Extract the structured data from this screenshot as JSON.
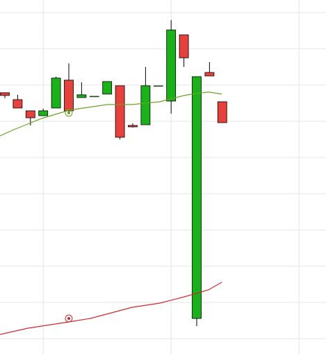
{
  "chart_data": {
    "type": "candlestick",
    "x": [
      0,
      1,
      2,
      3,
      4,
      5,
      6,
      7,
      8,
      9,
      10,
      11,
      12,
      13,
      14,
      15,
      16,
      17
    ],
    "open": [
      375,
      365,
      349,
      342,
      353,
      393,
      368,
      370,
      373,
      385,
      328,
      329,
      385,
      363,
      458,
      51,
      404,
      362
    ],
    "high": [
      375,
      372,
      349,
      352,
      398,
      417,
      390,
      370,
      391,
      385,
      331,
      412,
      385,
      479,
      458,
      398,
      419,
      362
    ],
    "low": [
      367,
      353,
      328,
      342,
      353,
      345,
      368,
      370,
      373,
      308,
      325,
      329,
      385,
      345,
      412,
      40,
      399,
      332
    ],
    "close": [
      371,
      353,
      339,
      349,
      396,
      349,
      372,
      370,
      391,
      311,
      326,
      385,
      385,
      465,
      425,
      398,
      399,
      332
    ],
    "up_color": "#19b219",
    "down_color": "#e8403a",
    "lines": [
      {
        "color": "#6aa321",
        "x": [
          -0.38,
          0.71,
          1.79,
          2.88,
          3.97,
          5.05,
          6.14,
          8.04,
          9.95,
          11.03,
          12.12,
          12.93,
          14.02,
          14.95,
          15.92,
          16.96
        ],
        "values": [
          313,
          322,
          330,
          338,
          344,
          350,
          353,
          358,
          358,
          360,
          362,
          366,
          371,
          374,
          376,
          373
        ]
      },
      {
        "color": "#d8262a",
        "x": [
          -0.38,
          1.79,
          5.0,
          6.68,
          8.32,
          9.95,
          12.12,
          14.02,
          15.92,
          16.96
        ],
        "values": [
          28,
          37,
          46,
          51,
          59,
          67,
          73,
          82,
          92,
          103
        ]
      }
    ],
    "markers": [
      {
        "color": "#6aa321",
        "x": 5.0,
        "value": 346
      },
      {
        "color": "#d8262a",
        "x": 5.0,
        "value": 51
      }
    ],
    "xlim": [
      -0.38,
      25.11
    ],
    "ylim": [
      0,
      508
    ],
    "xticks": [
      3,
      13,
      23
    ],
    "yticks": [
      490,
      438,
      386,
      334,
      282,
      230,
      178,
      126,
      74,
      22
    ],
    "grid": true
  }
}
